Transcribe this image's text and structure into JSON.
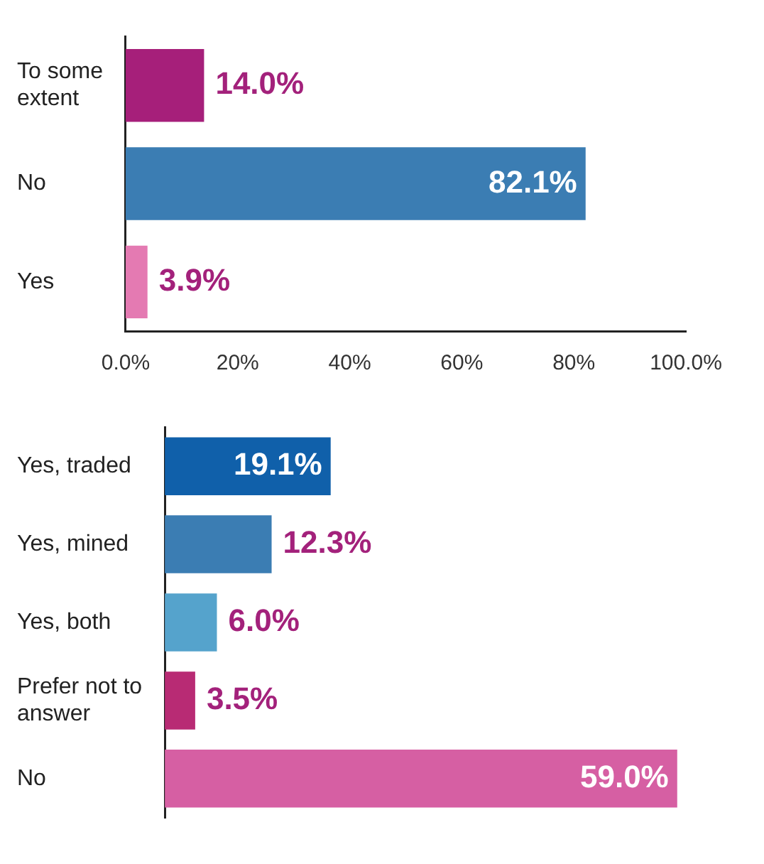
{
  "chart_data": [
    {
      "type": "bar",
      "orientation": "horizontal",
      "categories": [
        "To some extent",
        "No",
        "Yes"
      ],
      "values": [
        14.0,
        82.1,
        3.9
      ],
      "colors": [
        "#a61f7a",
        "#3b7db3",
        "#e47ab2"
      ],
      "value_labels": [
        "14.0%",
        "82.1%",
        "3.9%"
      ],
      "xlim": [
        0,
        100
      ],
      "xticks": [
        {
          "value": 0,
          "label": "0.0%"
        },
        {
          "value": 20,
          "label": "20%"
        },
        {
          "value": 40,
          "label": "40%"
        },
        {
          "value": 60,
          "label": "60%"
        },
        {
          "value": 80,
          "label": "80%"
        },
        {
          "value": 100,
          "label": "100.0%"
        }
      ],
      "grid": false,
      "legend": false
    },
    {
      "type": "bar",
      "orientation": "horizontal",
      "categories": [
        "Yes, traded",
        "Yes, mined",
        "Yes, both",
        "Prefer not to answer",
        "No"
      ],
      "values": [
        19.1,
        12.3,
        6.0,
        3.5,
        59.0
      ],
      "colors": [
        "#1060aa",
        "#3b7db3",
        "#55a3cc",
        "#b82b74",
        "#d65fa3"
      ],
      "value_labels": [
        "19.1%",
        "12.3%",
        "6.0%",
        "3.5%",
        "59.0%"
      ],
      "tick_labels": "y",
      "grid": false,
      "legend": false
    }
  ]
}
